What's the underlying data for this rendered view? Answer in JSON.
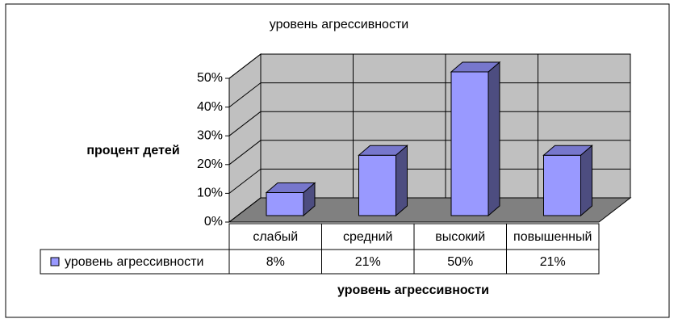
{
  "chart_data": {
    "type": "bar3d",
    "title": "уровень агрессивности",
    "y_label": "процент детей",
    "x_label": "уровень агрессивности",
    "categories": [
      "слабый",
      "средний",
      "высокий",
      "повышенный"
    ],
    "series": [
      {
        "name": "уровень агрессивности",
        "color": "#9999ff",
        "values": [
          8,
          21,
          50,
          21
        ],
        "value_labels": [
          "8%",
          "21%",
          "50%",
          "21%"
        ]
      }
    ],
    "ylim": [
      0,
      50
    ],
    "yticks": [
      {
        "value": 0,
        "label": "0%"
      },
      {
        "value": 10,
        "label": "10%"
      },
      {
        "value": 20,
        "label": "20%"
      },
      {
        "value": 30,
        "label": "30%"
      },
      {
        "value": 40,
        "label": "40%"
      },
      {
        "value": 50,
        "label": "50%"
      }
    ],
    "grid": true
  }
}
